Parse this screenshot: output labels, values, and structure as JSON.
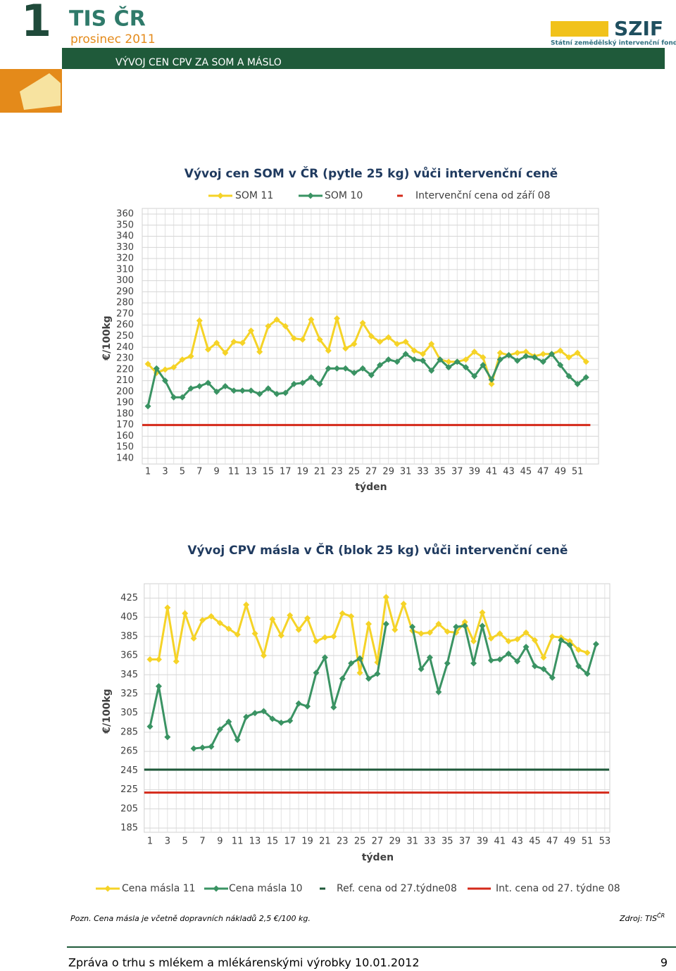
{
  "header": {
    "number": "1",
    "brand": "TIS ČR",
    "period": "prosinec 2011",
    "section": "VÝVOJ CEN CPV ZA SOM A MÁSLO",
    "logo": "SZIF",
    "logo_subtitle": "Státní zemědělský intervenční fond"
  },
  "chart_data": [
    {
      "type": "line",
      "title": "Vývoj cen SOM v ČR (pytle 25 kg) vůči intervenční ceně",
      "x_label": "týden",
      "y_label": "€/100kg",
      "legend": "top",
      "grid": true,
      "categories": [
        "1",
        null,
        "3",
        null,
        "5",
        null,
        "7",
        null,
        "9",
        null,
        "11",
        null,
        "13",
        null,
        "15",
        null,
        "17",
        null,
        "19",
        null,
        "21",
        null,
        "23",
        null,
        "25",
        null,
        "27",
        null,
        "29",
        null,
        "31",
        null,
        "33",
        null,
        "35",
        null,
        "37",
        null,
        "39",
        null,
        "41",
        null,
        "43",
        null,
        "45",
        null,
        "47",
        null,
        "49",
        null,
        "51",
        null
      ],
      "series": [
        {
          "name": "SOM 11",
          "color": "#f5d327",
          "values": [
            225,
            217,
            220,
            222,
            229,
            232,
            264,
            238,
            244,
            235,
            245,
            244,
            255,
            236,
            259,
            265,
            259,
            248,
            247,
            265,
            247,
            237,
            266,
            239,
            243,
            262,
            250,
            245,
            249,
            243,
            245,
            237,
            234,
            243,
            229,
            227,
            227,
            229,
            236,
            231,
            207,
            235,
            233,
            235,
            236,
            232,
            234,
            234,
            237,
            231,
            235,
            227
          ]
        },
        {
          "name": "SOM 10",
          "color": "#3a9363",
          "values": [
            187,
            221,
            210,
            195,
            195,
            203,
            205,
            208,
            200,
            205,
            201,
            201,
            201,
            198,
            203,
            198,
            199,
            207,
            208,
            213,
            207,
            221,
            221,
            221,
            217,
            221,
            215,
            224,
            229,
            227,
            234,
            229,
            228,
            219,
            229,
            222,
            227,
            222,
            214,
            224,
            211,
            229,
            233,
            228,
            232,
            231,
            227,
            234,
            224,
            214,
            207,
            213
          ]
        }
      ],
      "lines": [
        {
          "name": "Intervenční cena od září 08",
          "color": "#d42a1a",
          "value": 170
        }
      ],
      "ylim": [
        140,
        360
      ],
      "yticks": [
        140,
        150,
        160,
        170,
        180,
        190,
        200,
        210,
        220,
        230,
        240,
        250,
        260,
        270,
        280,
        290,
        300,
        310,
        320,
        330,
        340,
        350,
        360
      ]
    },
    {
      "type": "line",
      "title": "Vývoj CPV másla v ČR (blok 25 kg) vůči intervenční ceně",
      "x_label": "týden",
      "y_label": "€/100kg",
      "legend": "bottom",
      "grid": true,
      "categories": [
        "1",
        null,
        "3",
        null,
        "5",
        null,
        "7",
        null,
        "9",
        null,
        "11",
        null,
        "13",
        null,
        "15",
        null,
        "17",
        null,
        "19",
        null,
        "21",
        null,
        "23",
        null,
        "25",
        null,
        "27",
        null,
        "29",
        null,
        "31",
        null,
        "33",
        null,
        "35",
        null,
        "37",
        null,
        "39",
        null,
        "41",
        null,
        "43",
        null,
        "45",
        null,
        "47",
        null,
        "49",
        null,
        "51",
        null,
        "53"
      ],
      "series": [
        {
          "name": "Cena másla 11",
          "color": "#f5d327",
          "values": [
            361,
            361,
            415,
            359,
            409,
            383,
            402,
            406,
            399,
            393,
            387,
            418,
            388,
            365,
            403,
            386,
            407,
            392,
            404,
            380,
            384,
            385,
            409,
            406,
            347,
            398,
            358,
            426,
            392,
            419,
            391,
            388,
            389,
            398,
            390,
            389,
            400,
            380,
            410,
            383,
            388,
            380,
            382,
            389,
            381,
            363,
            385,
            384,
            380,
            371,
            368,
            null,
            null
          ]
        },
        {
          "name": "Cena másla 10",
          "color": "#3a9363",
          "values": [
            291,
            333,
            280,
            null,
            null,
            268,
            269,
            270,
            288,
            296,
            277,
            301,
            305,
            307,
            299,
            295,
            297,
            315,
            312,
            347,
            363,
            311,
            341,
            357,
            362,
            341,
            346,
            398,
            null,
            null,
            395,
            351,
            363,
            327,
            357,
            395,
            396,
            357,
            396,
            360,
            361,
            367,
            359,
            374,
            354,
            351,
            342,
            381,
            376,
            354,
            346,
            377,
            null
          ]
        }
      ],
      "lines": [
        {
          "name": "Ref. cena od 27.týdne08",
          "color": "#1f5a3a",
          "value": 246
        },
        {
          "name": "Int. cena od 27. týdne 08",
          "color": "#d42a1a",
          "value": 222
        }
      ],
      "ylim": [
        185,
        440
      ],
      "yticks": [
        185,
        205,
        225,
        245,
        265,
        285,
        305,
        325,
        345,
        365,
        385,
        405,
        425
      ]
    }
  ],
  "note": {
    "text": "Pozn. Cena másla je včetně dopravních nákladů 2,5 €/100 kg.",
    "source": "Zdroj: TIS",
    "source_sup": "ČR"
  },
  "footer": {
    "text": "Zpráva o trhu s mlékem a mlékárenskými výrobky 10.01.2012",
    "page": "9"
  }
}
